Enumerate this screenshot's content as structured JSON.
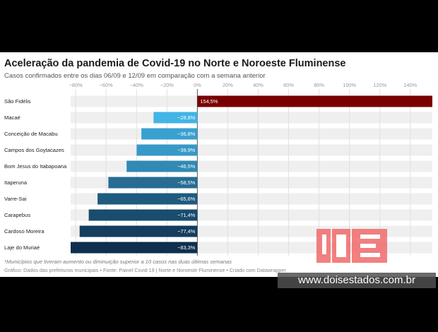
{
  "title": "Aceleração da pandemia de Covid-19 no Norte e Noroeste Fluminense",
  "subtitle": "Casos confirmados entre os dias 06/09 e 12/09 em comparação com a semana anterior",
  "footnote": "*Municípios que tiveram aumento ou diminuição superior a 10 casos nas duas últimas semanas",
  "source": "Gráfico: Dados das prefeituras municipais • Fonte: Painel Covid 19 | Norte e Noroeste Fluminense • Criado com Datawrapper",
  "watermark": {
    "logo_letters": "JDE",
    "url": "www.doisestados.com.br"
  },
  "colors": {
    "positive": "#7a0000",
    "negative_light": "#42b4e6",
    "negative_dark": "#0e2f4d",
    "band": "#efefef",
    "logo": "#f06a6a"
  },
  "chart_data": {
    "type": "bar",
    "orientation": "horizontal",
    "categories": [
      "São Fidélis",
      "Macaé",
      "Conceição de Macabu",
      "Campos dos Goytacazes",
      "Bom Jesus do Itabapoana",
      "Itaperuna",
      "Varre-Sai",
      "Carapebus",
      "Cardoso Moreira",
      "Laje do Muriaé"
    ],
    "values": [
      154.5,
      -28.8,
      -36.8,
      -39.9,
      -46.5,
      -58.5,
      -65.6,
      -71.4,
      -77.4,
      -83.3
    ],
    "value_labels": [
      "154,5%",
      "−28,8%",
      "−36,8%",
      "−39,9%",
      "−46,5%",
      "−58,5%",
      "−65,6%",
      "−71,4%",
      "−77,4%",
      "−83,3%"
    ],
    "x_ticks": [
      -80,
      -60,
      -40,
      -20,
      0,
      20,
      40,
      60,
      80,
      100,
      120,
      140
    ],
    "x_tick_labels": [
      "−80%",
      "−60%",
      "−40%",
      "−20%",
      "0%",
      "20%",
      "40%",
      "60%",
      "80%",
      "100%",
      "120%",
      "140%"
    ],
    "xlim": [
      -83.3,
      154.5
    ],
    "grid": true,
    "legend": "none"
  }
}
